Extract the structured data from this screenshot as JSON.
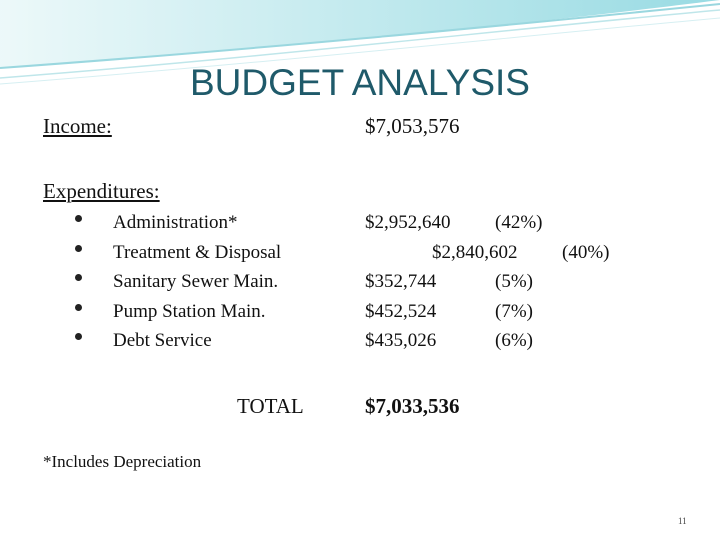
{
  "header": {
    "title": "BUDGET ANALYSIS"
  },
  "income": {
    "label": "Income:",
    "value": "$7,053,576"
  },
  "expenditures": {
    "label": "Expenditures:",
    "items": [
      {
        "name": "Administration*",
        "amount": "$2,952,640",
        "percent": "(42%)"
      },
      {
        "name": "Treatment & Disposal",
        "amount": "$2,840,602",
        "percent": "(40%)"
      },
      {
        "name": "Sanitary Sewer Main.",
        "amount": "$352,744",
        "percent": "(5%)"
      },
      {
        "name": "Pump Station Main.",
        "amount": "$452,524",
        "percent": "(7%)"
      },
      {
        "name": "Debt Service",
        "amount": "$435,026",
        "percent": "(6%)"
      }
    ]
  },
  "total": {
    "label": "TOTAL",
    "value": "$7,033,536"
  },
  "footnote": "*Includes Depreciation",
  "page_number": "11"
}
